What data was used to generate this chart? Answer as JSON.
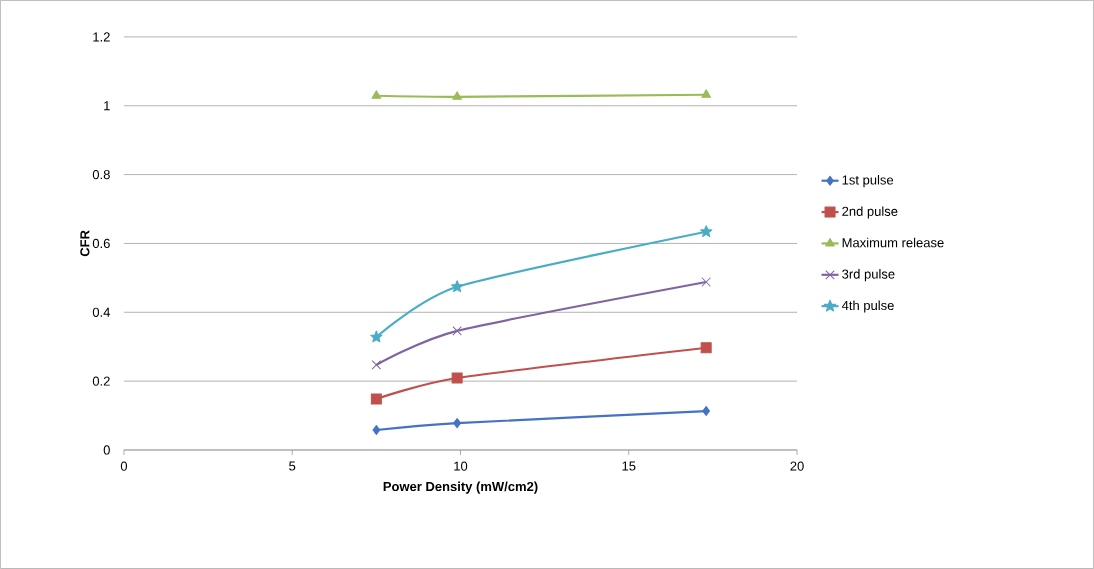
{
  "chart_data": {
    "type": "line",
    "xlabel": "Power Density (mW/cm2)",
    "ylabel": "CFR",
    "x": [
      7.5,
      9.9,
      17.3
    ],
    "series": [
      {
        "name": "1st pulse",
        "color": "#4472c4",
        "marker": "diamond",
        "values": [
          0.058,
          0.078,
          0.113
        ]
      },
      {
        "name": "2nd pulse",
        "color": "#c0504d",
        "marker": "square",
        "values": [
          0.148,
          0.209,
          0.297
        ]
      },
      {
        "name": "Maximum release",
        "color": "#9bbb59",
        "marker": "triangle",
        "values": [
          1.029,
          1.026,
          1.032
        ]
      },
      {
        "name": "3rd pulse",
        "color": "#8064a2",
        "marker": "cross",
        "values": [
          0.247,
          0.346,
          0.488
        ]
      },
      {
        "name": "4th pulse",
        "color": "#4bacc6",
        "marker": "star",
        "values": [
          0.328,
          0.474,
          0.634
        ]
      }
    ],
    "xlim": [
      0,
      20
    ],
    "xticks": [
      0,
      5,
      10,
      15,
      20
    ],
    "ylim": [
      0,
      1.2
    ],
    "yticks": [
      0,
      0.2,
      0.4,
      0.6,
      0.8,
      1,
      1.2
    ],
    "grid": "y",
    "legend": "right"
  }
}
